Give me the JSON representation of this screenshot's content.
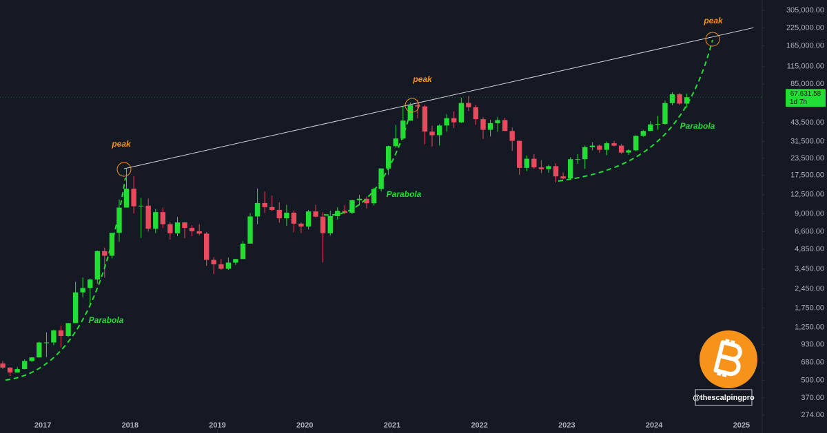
{
  "chart_data": {
    "type": "candlestick",
    "log_scale": true,
    "up_color": "#22dd33",
    "down_color": "#ea4a5e",
    "xlim": [
      2016.51,
      2025.23
    ],
    "xticks": [
      2017,
      2018,
      2019,
      2020,
      2021,
      2022,
      2023,
      2024,
      2025
    ],
    "ylim": [
      201,
      365000
    ],
    "yticks": [
      {
        "value": 305000,
        "label": "305,000.00"
      },
      {
        "value": 225000,
        "label": "225,000.00"
      },
      {
        "value": 165000,
        "label": "165,000.00"
      },
      {
        "value": 115000,
        "label": "115,000.00"
      },
      {
        "value": 85000,
        "label": "85,000.00"
      },
      {
        "value": 43500,
        "label": "43,500.00"
      },
      {
        "value": 31500,
        "label": "31,500.00"
      },
      {
        "value": 23500,
        "label": "23,500.00"
      },
      {
        "value": 17500,
        "label": "17,500.00"
      },
      {
        "value": 12500,
        "label": "12,500.00"
      },
      {
        "value": 9000,
        "label": "9,000.00"
      },
      {
        "value": 6600,
        "label": "6,600.00"
      },
      {
        "value": 4850,
        "label": "4,850.00"
      },
      {
        "value": 3450,
        "label": "3,450.00"
      },
      {
        "value": 2450,
        "label": "2,450.00"
      },
      {
        "value": 1750,
        "label": "1,750.00"
      },
      {
        "value": 1250,
        "label": "1,250.00"
      },
      {
        "value": 930,
        "label": "930.00"
      },
      {
        "value": 680,
        "label": "680.00"
      },
      {
        "value": 500,
        "label": "500.00"
      },
      {
        "value": 370,
        "label": "370.00"
      },
      {
        "value": 274,
        "label": "274.00"
      }
    ],
    "x": [
      2016.542,
      2016.625,
      2016.708,
      2016.792,
      2016.875,
      2016.958,
      2017.042,
      2017.125,
      2017.208,
      2017.292,
      2017.375,
      2017.458,
      2017.542,
      2017.625,
      2017.708,
      2017.792,
      2017.875,
      2017.958,
      2018.042,
      2018.125,
      2018.208,
      2018.292,
      2018.375,
      2018.458,
      2018.542,
      2018.625,
      2018.708,
      2018.792,
      2018.875,
      2018.958,
      2019.042,
      2019.125,
      2019.208,
      2019.292,
      2019.375,
      2019.458,
      2019.542,
      2019.625,
      2019.708,
      2019.792,
      2019.875,
      2019.958,
      2020.042,
      2020.125,
      2020.208,
      2020.292,
      2020.375,
      2020.458,
      2020.542,
      2020.625,
      2020.708,
      2020.792,
      2020.875,
      2020.958,
      2021.042,
      2021.125,
      2021.208,
      2021.292,
      2021.375,
      2021.458,
      2021.542,
      2021.625,
      2021.708,
      2021.792,
      2021.875,
      2021.958,
      2022.042,
      2022.125,
      2022.208,
      2022.292,
      2022.375,
      2022.458,
      2022.542,
      2022.625,
      2022.708,
      2022.792,
      2022.875,
      2022.958,
      2023.042,
      2023.125,
      2023.208,
      2023.292,
      2023.375,
      2023.458,
      2023.542,
      2023.625,
      2023.708,
      2023.792,
      2023.875,
      2023.958,
      2024.042,
      2024.125,
      2024.208,
      2024.292,
      2024.375
    ],
    "open": [
      670,
      624,
      573,
      609,
      700,
      745,
      964,
      965,
      1190,
      1080,
      1350,
      2300,
      2480,
      2875,
      4700,
      4340,
      6450,
      10000,
      13860,
      10230,
      10330,
      6930,
      9240,
      7490,
      6400,
      7730,
      7030,
      6630,
      6370,
      4040,
      3740,
      3460,
      3850,
      4100,
      5350,
      8570,
      10820,
      10080,
      9600,
      8300,
      9150,
      7570,
      7200,
      9350,
      8540,
      6410,
      8620,
      9450,
      9140,
      11350,
      11650,
      10780,
      13800,
      19700,
      28990,
      33110,
      45140,
      58800,
      57700,
      37300,
      35040,
      41460,
      47100,
      43800,
      61300,
      57000,
      46300,
      38480,
      43190,
      45540,
      37700,
      31800,
      19900,
      23300,
      20050,
      19430,
      20500,
      17170,
      16550,
      23130,
      23150,
      28480,
      29250,
      27220,
      30480,
      29230,
      25940,
      26970,
      34660,
      37720,
      42280,
      42580,
      61130,
      71290,
      60640
    ],
    "high": [
      700,
      630,
      630,
      720,
      750,
      980,
      1150,
      1200,
      1290,
      1350,
      2760,
      2980,
      2920,
      4750,
      5000,
      6470,
      11500,
      19800,
      17200,
      11800,
      11700,
      9750,
      10000,
      7760,
      8500,
      7760,
      7400,
      7500,
      6550,
      4250,
      4100,
      4200,
      4100,
      5600,
      9100,
      13900,
      13200,
      12300,
      10950,
      10500,
      9500,
      7750,
      9600,
      10500,
      9200,
      9470,
      10070,
      10400,
      11450,
      12470,
      12090,
      14100,
      19500,
      29300,
      41950,
      58350,
      61800,
      64900,
      59500,
      41300,
      42400,
      50500,
      52900,
      67000,
      69000,
      59100,
      47990,
      45800,
      48200,
      47450,
      40000,
      31900,
      24650,
      25200,
      22700,
      21000,
      21470,
      18400,
      23950,
      25250,
      29200,
      31000,
      29820,
      31400,
      31800,
      30200,
      27500,
      35000,
      38450,
      44700,
      48970,
      63900,
      73800,
      72800,
      71950
    ],
    "low": [
      610,
      540,
      570,
      605,
      690,
      745,
      750,
      920,
      890,
      1060,
      1350,
      2100,
      1830,
      2670,
      2970,
      4150,
      5500,
      10000,
      9000,
      5900,
      6600,
      6430,
      7000,
      5750,
      6100,
      5880,
      6100,
      6200,
      3650,
      3150,
      3400,
      3400,
      3700,
      4100,
      5350,
      7500,
      9100,
      9400,
      7700,
      7300,
      6500,
      6430,
      6850,
      8450,
      3850,
      6150,
      8100,
      8900,
      8950,
      10500,
      9850,
      10370,
      13200,
      17600,
      28130,
      32400,
      45000,
      47000,
      30000,
      28800,
      29300,
      37300,
      39600,
      43300,
      53300,
      42000,
      32900,
      34300,
      37200,
      37700,
      26700,
      17600,
      18800,
      19600,
      18150,
      18200,
      15480,
      16300,
      16500,
      21350,
      19550,
      26950,
      25800,
      24800,
      28860,
      25300,
      24900,
      26550,
      34100,
      37600,
      38550,
      41900,
      59000,
      59100,
      56500
    ],
    "close": [
      624,
      573,
      609,
      700,
      745,
      964,
      965,
      1190,
      1080,
      1350,
      2300,
      2480,
      2875,
      4700,
      4340,
      6450,
      10000,
      13860,
      10230,
      10330,
      6930,
      9240,
      7490,
      6400,
      7730,
      7030,
      6630,
      6370,
      4040,
      3740,
      3460,
      3850,
      4100,
      5350,
      8570,
      10820,
      10080,
      9600,
      8300,
      9150,
      7570,
      7200,
      9350,
      8540,
      6410,
      8620,
      9450,
      9140,
      11350,
      11650,
      10780,
      13800,
      19700,
      28990,
      33110,
      45140,
      58800,
      57700,
      37300,
      35040,
      41460,
      47100,
      43800,
      61300,
      57000,
      46300,
      38480,
      43190,
      45540,
      37700,
      31800,
      19900,
      23300,
      20050,
      19430,
      20500,
      17170,
      16550,
      23130,
      23150,
      28480,
      29250,
      27220,
      30480,
      29230,
      25940,
      26970,
      34660,
      37720,
      42280,
      42580,
      61130,
      71290,
      60640,
      67631.58
    ],
    "last_price": 67631.58,
    "last_price_label": "67,631.58",
    "countdown": "1d 7h",
    "trendline": {
      "x": [
        2017.93,
        2025.14
      ],
      "y": [
        19600,
        226000
      ]
    },
    "annotations": {
      "peak_1": "peak",
      "peak_2": "peak",
      "peak_3": "peak",
      "parabola_1": "Parabola",
      "parabola_2": "Parabola",
      "parabola_3": "Parabola"
    },
    "watermark": "@thescalpingpro"
  }
}
